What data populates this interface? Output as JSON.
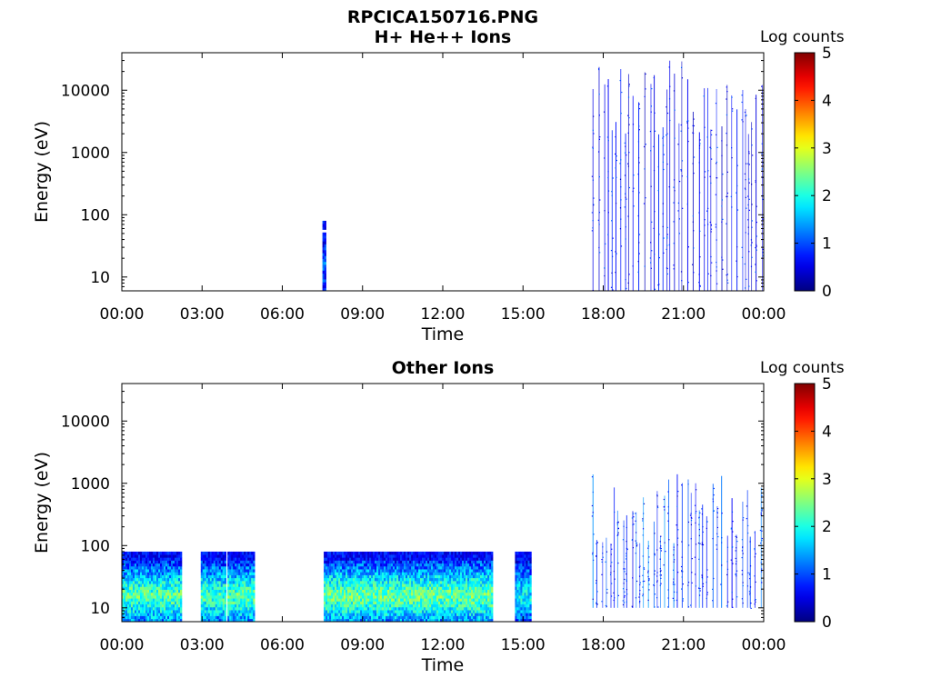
{
  "figure": {
    "title_line1": "RPCICA150716.PNG",
    "title_line2": "H+ He++ Ions"
  },
  "colorbar": {
    "label": "Log counts",
    "ticks": [
      "0",
      "1",
      "2",
      "3",
      "4",
      "5"
    ],
    "range": [
      0,
      5
    ],
    "colormap": "jet"
  },
  "chart_data": [
    {
      "type": "heatmap",
      "title": "H+ He++ Ions",
      "xlabel": "Time",
      "ylabel": "Energy (eV)",
      "x_ticks": [
        "00:00",
        "03:00",
        "06:00",
        "09:00",
        "12:00",
        "15:00",
        "18:00",
        "21:00",
        "00:00"
      ],
      "xlim_hours": [
        0,
        24
      ],
      "y_ticks": [
        "10",
        "100",
        "1000",
        "10000"
      ],
      "yscale": "log",
      "ylim": [
        6,
        40000
      ],
      "activity": [
        {
          "start_h": 7.5,
          "end_h": 7.58,
          "emin": 6,
          "emax": 80,
          "level": 1.0
        },
        {
          "start_h": 17.6,
          "end_h": 24.0,
          "emin": 6,
          "emax": 30000,
          "level": 0.7
        }
      ]
    },
    {
      "type": "heatmap",
      "title": "Other Ions",
      "xlabel": "Time",
      "ylabel": "Energy (eV)",
      "x_ticks": [
        "00:00",
        "03:00",
        "06:00",
        "09:00",
        "12:00",
        "15:00",
        "18:00",
        "21:00",
        "00:00"
      ],
      "xlim_hours": [
        0,
        24
      ],
      "y_ticks": [
        "10",
        "100",
        "1000",
        "10000"
      ],
      "yscale": "log",
      "ylim": [
        6,
        40000
      ],
      "activity": [
        {
          "start_h": 0.0,
          "end_h": 2.2,
          "emin": 6,
          "emax": 80,
          "level": 2.3
        },
        {
          "start_h": 2.95,
          "end_h": 3.85,
          "emin": 6,
          "emax": 80,
          "level": 2.2
        },
        {
          "start_h": 3.95,
          "end_h": 4.95,
          "emin": 6,
          "emax": 80,
          "level": 2.3
        },
        {
          "start_h": 7.55,
          "end_h": 13.85,
          "emin": 6,
          "emax": 80,
          "level": 2.4
        },
        {
          "start_h": 14.7,
          "end_h": 15.3,
          "emin": 6,
          "emax": 80,
          "level": 1.8
        },
        {
          "start_h": 17.6,
          "end_h": 24.0,
          "emin": 10,
          "emax": 1500,
          "level": 1.2
        }
      ]
    }
  ]
}
